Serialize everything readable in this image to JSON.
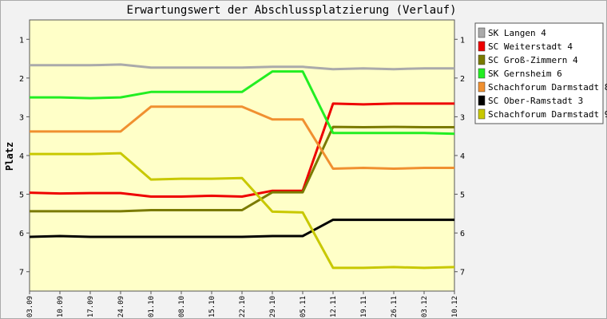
{
  "chart_data": {
    "type": "line",
    "title": "Erwartungswert der Abschlussplatzierung (Verlauf)",
    "ylabel": "Platz",
    "y_ticks": [
      "1",
      "2",
      "3",
      "4",
      "5",
      "6",
      "7"
    ],
    "ylim": [
      0.5,
      7.5
    ],
    "y_reversed": true,
    "grid": false,
    "legend_position": "right",
    "x": [
      "03.09",
      "10.09",
      "17.09",
      "24.09",
      "01.10",
      "08.10",
      "15.10",
      "22.10",
      "29.10",
      "05.11",
      "12.11",
      "19.11",
      "26.11",
      "03.12",
      "10.12"
    ],
    "series": [
      {
        "name": "SK Langen 4",
        "color": "#aaaaaa",
        "values": [
          1.67,
          1.67,
          1.67,
          1.65,
          1.73,
          1.73,
          1.73,
          1.73,
          1.71,
          1.71,
          1.77,
          1.75,
          1.77,
          1.75,
          1.75
        ]
      },
      {
        "name": "SC Weiterstadt 4",
        "color": "#ee0000",
        "values": [
          4.96,
          4.98,
          4.97,
          4.97,
          5.06,
          5.06,
          5.04,
          5.06,
          4.91,
          4.91,
          2.66,
          2.68,
          2.66,
          2.66,
          2.66
        ]
      },
      {
        "name": "SC Groß-Zimmern 4",
        "color": "#7a7a00",
        "values": [
          5.44,
          5.44,
          5.44,
          5.44,
          5.41,
          5.41,
          5.41,
          5.41,
          4.95,
          4.95,
          3.26,
          3.27,
          3.26,
          3.27,
          3.27
        ]
      },
      {
        "name": "SK Gernsheim 6",
        "color": "#22ee22",
        "values": [
          2.5,
          2.5,
          2.52,
          2.5,
          2.36,
          2.36,
          2.36,
          2.36,
          1.83,
          1.83,
          3.42,
          3.42,
          3.42,
          3.42,
          3.44
        ]
      },
      {
        "name": "Schachforum Darmstadt 8",
        "color": "#f09030",
        "values": [
          3.38,
          3.38,
          3.38,
          3.38,
          2.74,
          2.74,
          2.74,
          2.74,
          3.07,
          3.07,
          4.34,
          4.32,
          4.34,
          4.32,
          4.32
        ]
      },
      {
        "name": "SC Ober-Ramstadt 3",
        "color": "#000000",
        "values": [
          6.1,
          6.08,
          6.1,
          6.1,
          6.1,
          6.1,
          6.1,
          6.1,
          6.08,
          6.08,
          5.66,
          5.66,
          5.66,
          5.66,
          5.66
        ]
      },
      {
        "name": "Schachforum Darmstadt 9",
        "color": "#c8c800",
        "values": [
          3.96,
          3.96,
          3.96,
          3.94,
          4.62,
          4.6,
          4.6,
          4.58,
          5.45,
          5.47,
          6.9,
          6.9,
          6.88,
          6.9,
          6.88
        ]
      }
    ]
  }
}
